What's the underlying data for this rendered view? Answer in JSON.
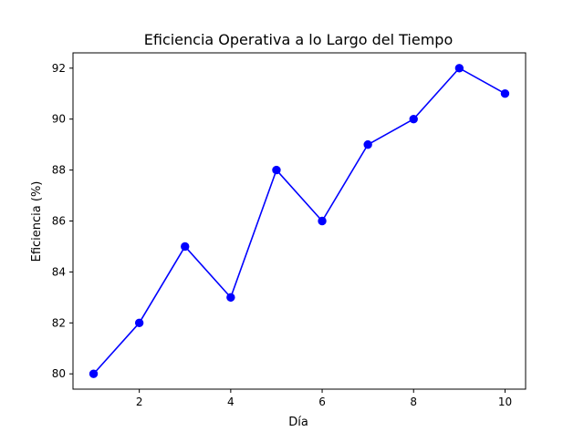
{
  "chart_data": {
    "type": "line",
    "title": "Eficiencia Operativa a lo Largo del Tiempo",
    "xlabel": "Día",
    "ylabel": "Eficiencia (%)",
    "x": [
      1,
      2,
      3,
      4,
      5,
      6,
      7,
      8,
      9,
      10
    ],
    "series": [
      {
        "values": [
          80,
          82,
          85,
          83,
          88,
          86,
          89,
          90,
          92,
          91
        ],
        "color": "#0000ff",
        "marker": "circle"
      }
    ],
    "xlim": [
      0.55,
      10.45
    ],
    "ylim": [
      79.4,
      92.6
    ],
    "xticks": [
      2,
      4,
      6,
      8,
      10
    ],
    "yticks": [
      80,
      82,
      84,
      86,
      88,
      90,
      92
    ],
    "grid": false,
    "legend": false
  }
}
